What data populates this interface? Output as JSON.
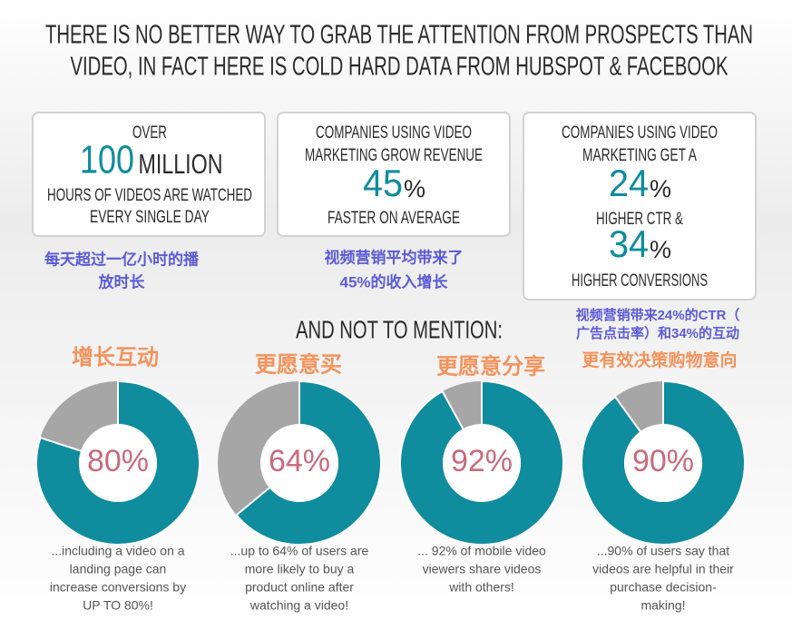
{
  "title": [
    "THERE IS NO BETTER WAY TO GRAB THE ATTENTION FROM PROSPECTS THAN",
    "VIDEO, IN FACT HERE IS COLD HARD DATA FROM HUBSPOT & FACEBOOK"
  ],
  "stats": [
    {
      "top": [
        "OVER"
      ],
      "figure": "100",
      "figure_suffix": "MILLION",
      "bottom": [
        "HOURS OF VIDEOS ARE WATCHED",
        "EVERY SINGLE DAY"
      ],
      "note": [
        "每天超过一亿小时的播",
        "放时长"
      ]
    },
    {
      "top": [
        "COMPANIES USING VIDEO",
        "MARKETING GROW REVENUE"
      ],
      "figure": "45",
      "figure_suffix": "%",
      "bottom": [
        "FASTER ON AVERAGE"
      ],
      "note": [
        "视频营销平均带来了",
        "45%的收入增长"
      ]
    },
    {
      "top": [
        "COMPANIES USING VIDEO",
        "MARKETING GET A"
      ],
      "figure": "24",
      "figure_suffix": "%",
      "middle": [
        "HIGHER CTR &"
      ],
      "figure2": "34",
      "figure2_suffix": "%",
      "bottom": [
        "HIGHER CONVERSIONS"
      ],
      "note": [
        "视频营销带来24%的CTR（",
        "广告点击率）和34%的互动"
      ]
    }
  ],
  "subtitle": "AND NOT TO MENTION:",
  "donuts": [
    {
      "heading": "增长互动",
      "value": 80,
      "value_label": "80%",
      "caption": [
        "...including a video on a",
        "landing page can",
        "increase conversions by",
        "UP TO 80%!"
      ]
    },
    {
      "heading": "更愿意买",
      "value": 64,
      "value_label": "64%",
      "caption": [
        "...up to 64% of users are",
        "more likely to buy a",
        "product online after",
        "watching a video!"
      ]
    },
    {
      "heading": "更愿意分享",
      "value": 92,
      "value_label": "92%",
      "caption": [
        "... 92% of mobile video",
        "viewers share videos",
        "with others!"
      ]
    },
    {
      "heading": "更有效决策购物意向",
      "value": 90,
      "value_label": "90%",
      "caption": [
        "...90% of users say that",
        "videos are helpful in their",
        "purchase decision-",
        "making!"
      ]
    }
  ],
  "colors": {
    "fill": "#0f8c9e",
    "rest": "#a6a6a6"
  }
}
